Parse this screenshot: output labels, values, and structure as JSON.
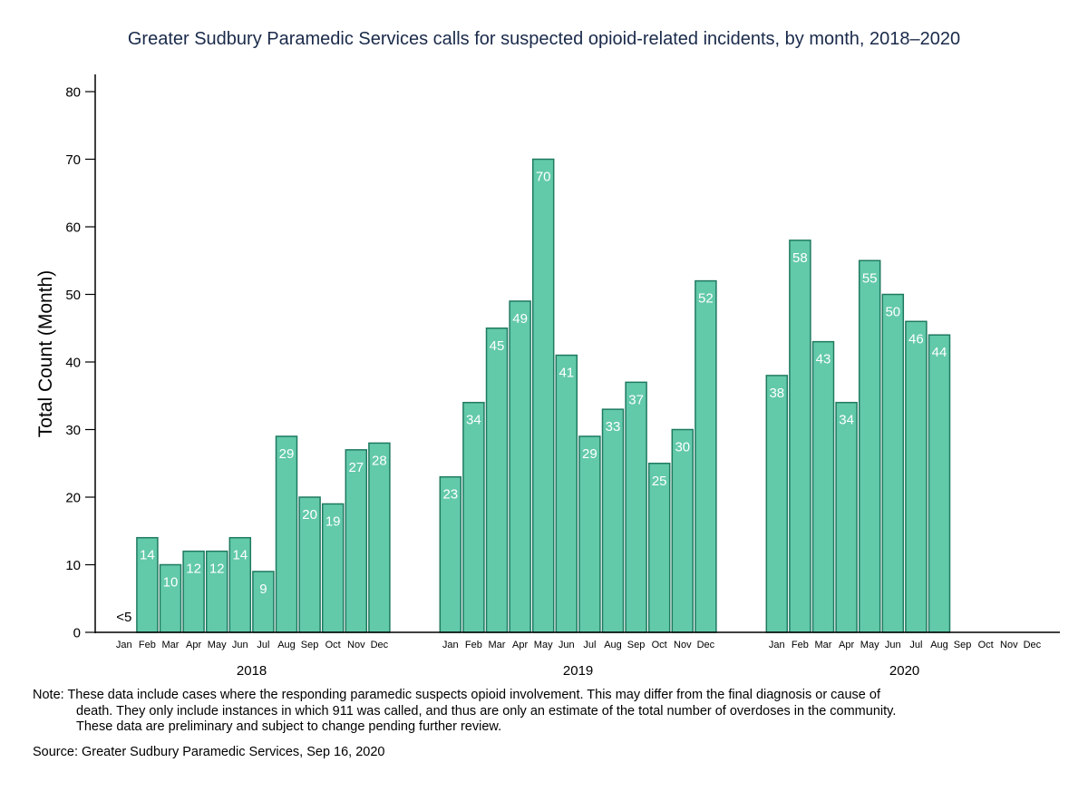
{
  "chart_data": {
    "type": "bar",
    "title": "Greater Sudbury Paramedic Services calls for suspected opioid-related incidents, by month, 2018–2020",
    "xlabel": "",
    "ylabel": "Total Count (Month)",
    "ylim": [
      0,
      80
    ],
    "yticks": [
      0,
      10,
      20,
      30,
      40,
      50,
      60,
      70,
      80
    ],
    "grid": false,
    "bar_color": "#62c9a9",
    "bar_edge_color": "#1f7a60",
    "label_color": "#ffffff",
    "suppressed_label": "<5",
    "months": [
      "Jan",
      "Feb",
      "Mar",
      "Apr",
      "May",
      "Jun",
      "Jul",
      "Aug",
      "Sep",
      "Oct",
      "Nov",
      "Dec"
    ],
    "groups": [
      {
        "year": "2018",
        "values": [
          null,
          14,
          10,
          12,
          12,
          14,
          9,
          29,
          20,
          19,
          27,
          28
        ],
        "suppressed": [
          true,
          false,
          false,
          false,
          false,
          false,
          false,
          false,
          false,
          false,
          false,
          false
        ]
      },
      {
        "year": "2019",
        "values": [
          23,
          34,
          45,
          49,
          70,
          41,
          29,
          33,
          37,
          25,
          30,
          52
        ],
        "suppressed": [
          false,
          false,
          false,
          false,
          false,
          false,
          false,
          false,
          false,
          false,
          false,
          false
        ]
      },
      {
        "year": "2020",
        "values": [
          38,
          58,
          43,
          34,
          55,
          50,
          46,
          44,
          null,
          null,
          null,
          null
        ],
        "suppressed": [
          false,
          false,
          false,
          false,
          false,
          false,
          false,
          false,
          false,
          false,
          false,
          false
        ]
      }
    ]
  },
  "note": {
    "prefix": "Note:",
    "line1": "These data include cases where the responding paramedic suspects opioid involvement. This may differ from the final diagnosis or cause of",
    "line2": "death. They only include instances in which 911 was called, and thus are only an estimate of the total number of overdoses in the community.",
    "line3": "These data are preliminary and subject to change pending further review."
  },
  "source": "Source: Greater Sudbury Paramedic Services, Sep 16, 2020"
}
